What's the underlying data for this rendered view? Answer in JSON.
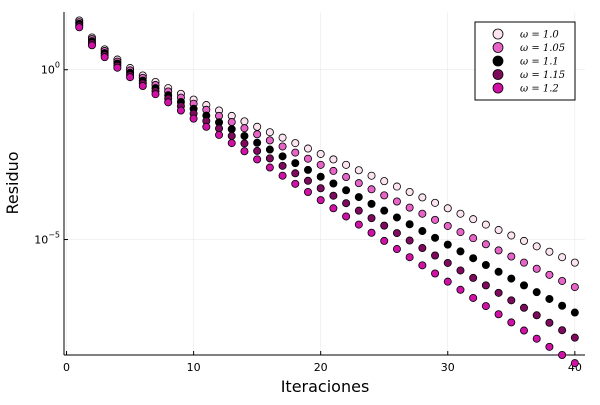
{
  "chart_data": {
    "type": "scatter",
    "xlabel": "Iteraciones",
    "ylabel": "Residuo",
    "xscale": "linear",
    "yscale": "log10",
    "xlim": [
      -0.2,
      40.8
    ],
    "ylim_log10": [
      -8.4,
      1.7
    ],
    "grid": true,
    "legend_position": "top-right",
    "x_ticks": [
      {
        "value": 0,
        "label": "0"
      },
      {
        "value": 10,
        "label": "10"
      },
      {
        "value": 20,
        "label": "20"
      },
      {
        "value": 30,
        "label": "30"
      },
      {
        "value": 40,
        "label": "40"
      }
    ],
    "y_ticks": [
      {
        "value_log10": 0,
        "label_base": "10",
        "label_exp": "0"
      },
      {
        "value_log10": -5,
        "label_base": "10",
        "label_exp": "−5"
      }
    ],
    "x": [
      1,
      2,
      3,
      4,
      5,
      6,
      7,
      8,
      9,
      10,
      11,
      12,
      13,
      14,
      15,
      16,
      17,
      18,
      19,
      20,
      21,
      22,
      23,
      24,
      25,
      26,
      27,
      28,
      29,
      30,
      31,
      32,
      33,
      34,
      35,
      36,
      37,
      38,
      39,
      40
    ],
    "series": [
      {
        "name": "ω = 1.0",
        "color": "#fbe3f0",
        "log10_values": [
          1.45,
          0.95,
          0.6,
          0.3,
          0.05,
          -0.17,
          -0.36,
          -0.54,
          -0.71,
          -0.88,
          -1.04,
          -1.2,
          -1.36,
          -1.52,
          -1.68,
          -1.84,
          -2.0,
          -2.16,
          -2.32,
          -2.48,
          -2.64,
          -2.8,
          -2.96,
          -3.12,
          -3.28,
          -3.44,
          -3.6,
          -3.76,
          -3.92,
          -4.08,
          -4.24,
          -4.4,
          -4.56,
          -4.72,
          -4.88,
          -5.04,
          -5.2,
          -5.36,
          -5.52,
          -5.68
        ]
      },
      {
        "name": "ω = 1.05",
        "color": "#e664c8",
        "log10_values": [
          1.4,
          0.9,
          0.55,
          0.24,
          -0.02,
          -0.24,
          -0.45,
          -0.64,
          -0.82,
          -1.0,
          -1.18,
          -1.36,
          -1.54,
          -1.72,
          -1.9,
          -2.08,
          -2.26,
          -2.44,
          -2.62,
          -2.8,
          -2.98,
          -3.16,
          -3.34,
          -3.52,
          -3.7,
          -3.88,
          -4.06,
          -4.24,
          -4.42,
          -4.6,
          -4.78,
          -4.96,
          -5.14,
          -5.32,
          -5.5,
          -5.68,
          -5.86,
          -6.04,
          -6.22,
          -6.4
        ]
      },
      {
        "name": "ω = 1.1",
        "color": "#000000",
        "log10_values": [
          1.35,
          0.84,
          0.49,
          0.18,
          -0.09,
          -0.32,
          -0.54,
          -0.75,
          -0.95,
          -1.15,
          -1.35,
          -1.55,
          -1.75,
          -1.95,
          -2.15,
          -2.35,
          -2.55,
          -2.75,
          -2.95,
          -3.15,
          -3.35,
          -3.55,
          -3.75,
          -3.95,
          -4.15,
          -4.35,
          -4.55,
          -4.75,
          -4.95,
          -5.15,
          -5.35,
          -5.55,
          -5.75,
          -5.95,
          -6.15,
          -6.35,
          -6.55,
          -6.75,
          -6.95,
          -7.15
        ]
      },
      {
        "name": "ω = 1.15",
        "color": "#7e0a5e",
        "log10_values": [
          1.3,
          0.78,
          0.43,
          0.12,
          -0.16,
          -0.4,
          -0.63,
          -0.85,
          -1.07,
          -1.29,
          -1.51,
          -1.73,
          -1.95,
          -2.17,
          -2.39,
          -2.61,
          -2.83,
          -3.05,
          -3.27,
          -3.49,
          -3.71,
          -3.93,
          -4.15,
          -4.37,
          -4.59,
          -4.81,
          -5.03,
          -5.25,
          -5.47,
          -5.69,
          -5.91,
          -6.13,
          -6.35,
          -6.57,
          -6.79,
          -7.01,
          -7.23,
          -7.45,
          -7.67,
          -7.89
        ]
      },
      {
        "name": "ω = 1.2",
        "color": "#d011a6",
        "log10_values": [
          1.25,
          0.72,
          0.37,
          0.06,
          -0.22,
          -0.48,
          -0.72,
          -0.96,
          -1.2,
          -1.44,
          -1.68,
          -1.92,
          -2.16,
          -2.4,
          -2.64,
          -2.88,
          -3.12,
          -3.36,
          -3.6,
          -3.84,
          -4.08,
          -4.32,
          -4.56,
          -4.8,
          -5.04,
          -5.28,
          -5.52,
          -5.76,
          -6.0,
          -6.24,
          -6.48,
          -6.72,
          -6.96,
          -7.2,
          -7.44,
          -7.68,
          -7.92,
          -8.16,
          -8.4,
          -8.64
        ]
      }
    ]
  }
}
